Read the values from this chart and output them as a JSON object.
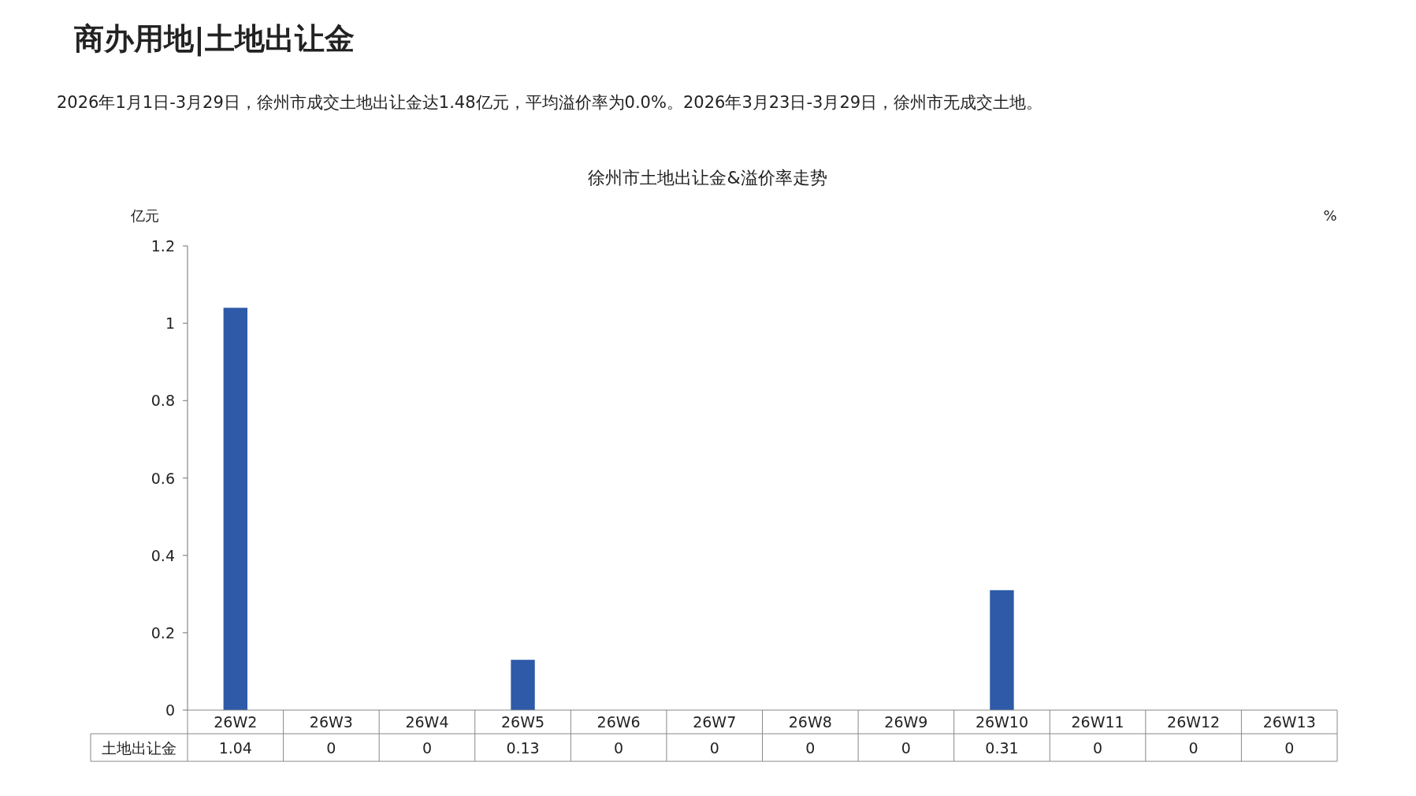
{
  "chart_data": {
    "type": "bar",
    "title": "徐州市土地出让金&溢价率走势",
    "annotations": [
      "商办用地|土地出让金",
      "2026年1月1日-3月29日，徐州市成交土地出让金达1.48亿元，平均溢价率为0.0%。2026年3月23日-3月29日，徐州市无成交土地。"
    ],
    "ylabel": "亿元",
    "y2label": "%",
    "categories": [
      "26W2",
      "26W3",
      "26W4",
      "26W5",
      "26W6",
      "26W7",
      "26W8",
      "26W9",
      "26W10",
      "26W11",
      "26W12",
      "26W13"
    ],
    "series": [
      {
        "name": "土地出让金",
        "color": "#2e5aa8",
        "values": [
          1.04,
          0,
          0,
          0.13,
          0,
          0,
          0,
          0,
          0.31,
          0,
          0,
          0
        ]
      }
    ],
    "ylim": [
      0,
      1.2
    ],
    "yticks": [
      0,
      0.2,
      0.4,
      0.6,
      0.8,
      1,
      1.2
    ],
    "data_labels": true,
    "grid": false
  }
}
